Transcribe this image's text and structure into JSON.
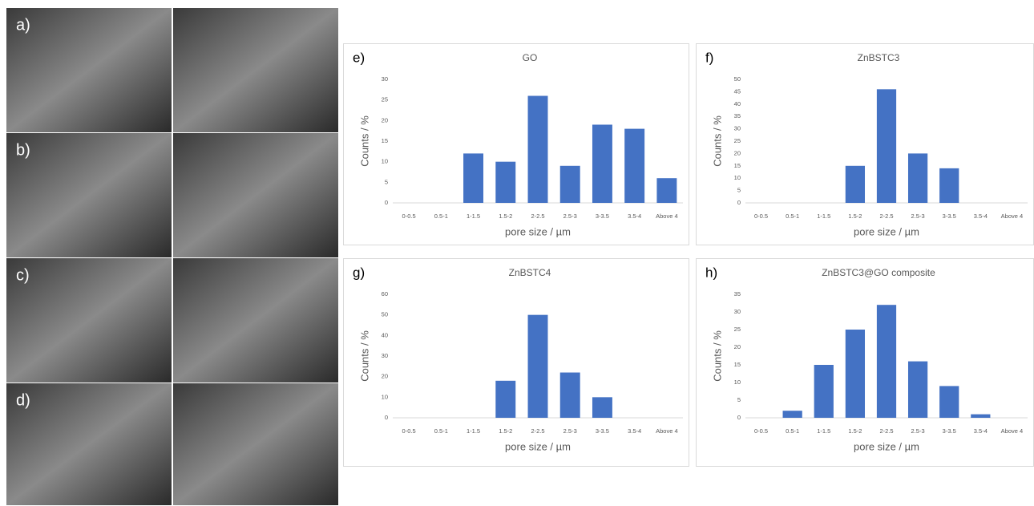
{
  "sem_panels": {
    "labels": [
      "a)",
      "b)",
      "c)",
      "d)"
    ]
  },
  "chart_data": [
    {
      "type": "bar",
      "panel": "e)",
      "title": "GO",
      "x_label": "pore size / µm",
      "y_label": "Counts / %",
      "categories": [
        "0-0.5",
        "0.5-1",
        "1-1.5",
        "1.5-2",
        "2-2.5",
        "2.5-3",
        "3-3.5",
        "3.5-4",
        "Above 4"
      ],
      "values": [
        0,
        0,
        12,
        10,
        26,
        9,
        19,
        18,
        6
      ],
      "color": "#4472c4",
      "ylim": [
        0,
        30
      ],
      "yticks": [
        0,
        5,
        10,
        15,
        20,
        25,
        30
      ]
    },
    {
      "type": "bar",
      "panel": "f)",
      "title": "ZnBSTC3",
      "x_label": "pore size / µm",
      "y_label": "Counts / %",
      "categories": [
        "0-0.5",
        "0.5-1",
        "1-1.5",
        "1.5-2",
        "2-2.5",
        "2.5-3",
        "3-3.5",
        "3.5-4",
        "Above 4"
      ],
      "values": [
        0,
        0,
        0,
        15,
        46,
        20,
        14,
        0,
        0
      ],
      "color": "#4472c4",
      "ylim": [
        0,
        50
      ],
      "yticks": [
        0,
        5,
        10,
        15,
        20,
        25,
        30,
        35,
        40,
        45,
        50
      ]
    },
    {
      "type": "bar",
      "panel": "g)",
      "title": "ZnBSTC4",
      "x_label": "pore size / µm",
      "y_label": "Counts / %",
      "categories": [
        "0-0.5",
        "0.5-1",
        "1-1.5",
        "1.5-2",
        "2-2.5",
        "2.5-3",
        "3-3.5",
        "3.5-4",
        "Above 4"
      ],
      "values": [
        0,
        0,
        0,
        18,
        50,
        22,
        10,
        0,
        0
      ],
      "color": "#4472c4",
      "ylim": [
        0,
        60
      ],
      "yticks": [
        0,
        10,
        20,
        30,
        40,
        50,
        60
      ]
    },
    {
      "type": "bar",
      "panel": "h)",
      "title": "ZnBSTC3@GO composite",
      "x_label": "pore size / µm",
      "y_label": "Counts / %",
      "categories": [
        "0-0.5",
        "0.5-1",
        "1-1.5",
        "1.5-2",
        "2-2.5",
        "2.5-3",
        "3-3.5",
        "3.5-4",
        "Above 4"
      ],
      "values": [
        0,
        2,
        15,
        25,
        32,
        16,
        9,
        1,
        0
      ],
      "color": "#4472c4",
      "ylim": [
        0,
        35
      ],
      "yticks": [
        0,
        5,
        10,
        15,
        20,
        25,
        30,
        35
      ]
    }
  ]
}
